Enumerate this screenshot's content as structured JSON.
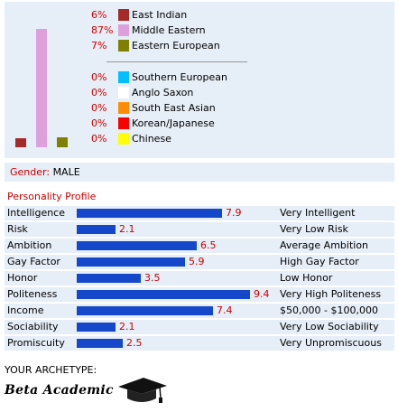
{
  "ethnicity": {
    "bars": [
      {
        "name": "East Indian",
        "value": 6,
        "color": "#a52a2a"
      },
      {
        "name": "Middle Eastern",
        "value": 87,
        "color": "#dda0dd"
      },
      {
        "name": "Eastern European",
        "value": 7,
        "color": "#808000"
      }
    ],
    "rows": [
      {
        "pct": "6%",
        "label": "East Indian",
        "color": "#a52a2a"
      },
      {
        "pct": "87%",
        "label": "Middle Eastern",
        "color": "#dda0dd"
      },
      {
        "pct": "7%",
        "label": "Eastern European",
        "color": "#808000"
      },
      {
        "pct": "0%",
        "label": "Southern European",
        "color": "#00bfff"
      },
      {
        "pct": "0%",
        "label": "Anglo Saxon",
        "color": "#ffffff"
      },
      {
        "pct": "0%",
        "label": "South East Asian",
        "color": "#ff8c00"
      },
      {
        "pct": "0%",
        "label": "Korean/Japanese",
        "color": "#ff0000"
      },
      {
        "pct": "0%",
        "label": "Chinese",
        "color": "#ffff00"
      }
    ]
  },
  "gender": {
    "label": "Gender:",
    "value": "MALE"
  },
  "personality": {
    "title": "Personality Profile",
    "max": 10,
    "traits": [
      {
        "name": "Intelligence",
        "value": 7.9,
        "display": "7.9",
        "desc": "Very Intelligent"
      },
      {
        "name": "Risk",
        "value": 2.1,
        "display": "2.1",
        "desc": "Very Low Risk"
      },
      {
        "name": "Ambition",
        "value": 6.5,
        "display": "6.5",
        "desc": "Average Ambition"
      },
      {
        "name": "Gay Factor",
        "value": 5.9,
        "display": "5.9",
        "desc": "High Gay Factor"
      },
      {
        "name": "Honor",
        "value": 3.5,
        "display": "3.5",
        "desc": "Low Honor"
      },
      {
        "name": "Politeness",
        "value": 9.4,
        "display": "9.4",
        "desc": "Very High Politeness"
      },
      {
        "name": "Income",
        "value": 7.4,
        "display": "7.4",
        "desc": "$50,000 - $100,000"
      },
      {
        "name": "Sociability",
        "value": 2.1,
        "display": "2.1",
        "desc": "Very Low Sociability"
      },
      {
        "name": "Promiscuity",
        "value": 2.5,
        "display": "2.5",
        "desc": "Very Unpromiscuous"
      }
    ]
  },
  "archetype": {
    "title": "YOUR ARCHETYPE:",
    "name": "Beta Academic",
    "icon": "graduation-cap-icon"
  }
}
